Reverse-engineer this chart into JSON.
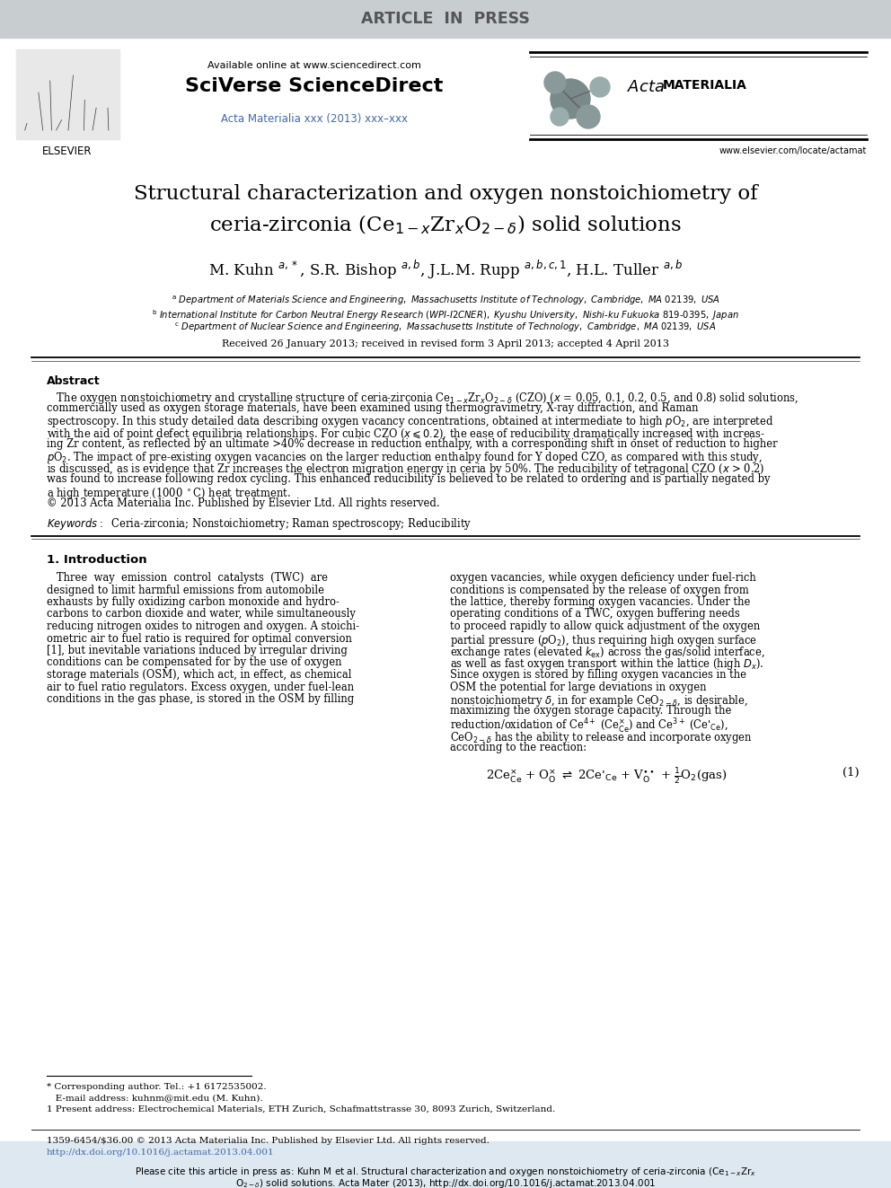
{
  "header_bar_color": "#c8cdd0",
  "header_text": "ARTICLE  IN  PRESS",
  "header_text_color": "#555555",
  "background_color": "#ffffff",
  "elsevier_text": "ELSEVIER",
  "available_online_text": "Available online at www.sciencedirect.com",
  "sciverse_text": "SciVerse ScienceDirect",
  "journal_ref": "Acta Materialia xxx (2013) xxx–xxx",
  "journal_ref_color": "#4169aa",
  "website_text": "www.elsevier.com/locate/actamat",
  "received_text": "Received 26 January 2013; received in revised form 3 April 2013; accepted 4 April 2013",
  "abstract_label": "Abstract",
  "keywords_label": "Keywords:",
  "keywords_text": "Ceria-zirconia; Nonstoichiometry; Raman spectroscopy; Reducibility",
  "intro_heading": "1. Introduction",
  "footnote_star": "* Corresponding author. Tel.: +1 6172535002.",
  "footnote_email": "   E-mail address: kuhnm@mit.edu (M. Kuhn).",
  "footnote_1": "1 Present address: Electrochemical Materials, ETH Zurich, Schafmattstrasse 30, 8093 Zurich, Switzerland.",
  "copyright_line": "1359-6454/$36.00 © 2013 Acta Materialia Inc. Published by Elsevier Ltd. All rights reserved.",
  "doi_line": "http://dx.doi.org/10.1016/j.actamat.2013.04.001",
  "cite_box_color": "#dde8f0",
  "link_color": "#4169aa"
}
